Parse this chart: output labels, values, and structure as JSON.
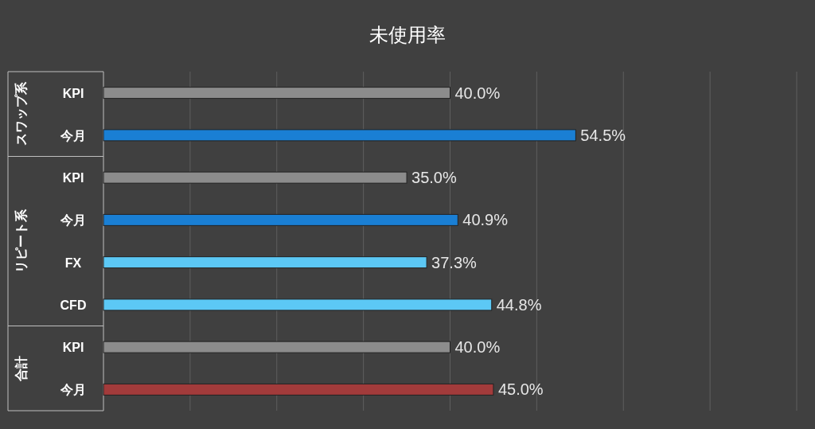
{
  "chart_data": {
    "type": "bar",
    "orientation": "horizontal",
    "title": "未使用率",
    "categories": [
      "KPI",
      "今月",
      "KPI",
      "今月",
      "FX",
      "CFD",
      "KPI",
      "今月"
    ],
    "values": [
      40.0,
      54.5,
      35.0,
      40.9,
      37.3,
      44.8,
      40.0,
      45.0
    ],
    "colors": [
      "#8c8c8c",
      "#1a7fd4",
      "#8c8c8c",
      "#1a7fd4",
      "#5cc8f5",
      "#5cc8f5",
      "#8c8c8c",
      "#a23b3b"
    ],
    "value_labels": [
      "40.0%",
      "54.5%",
      "35.0%",
      "40.9%",
      "37.3%",
      "44.8%",
      "40.0%",
      "45.0%"
    ],
    "xlim": [
      0,
      80
    ],
    "xticks": [
      0,
      10,
      20,
      30,
      40,
      50,
      60,
      70,
      80
    ],
    "grid": "x",
    "tick_labels": "y",
    "annotations": [
      "スワップ系",
      "リピート系",
      "合計"
    ]
  }
}
